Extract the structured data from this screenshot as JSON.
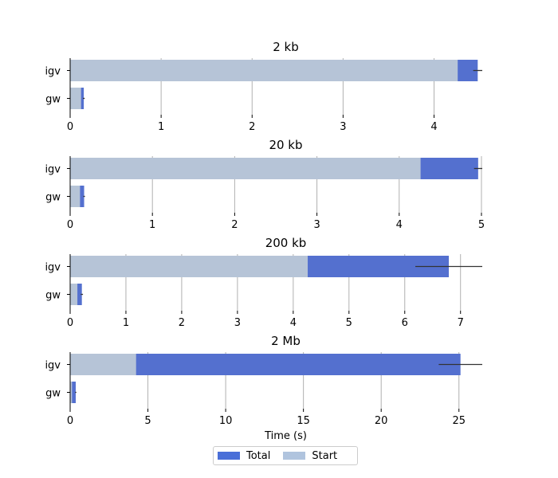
{
  "chart_data": [
    {
      "type": "bar",
      "orientation": "horizontal",
      "title": "2 kb",
      "categories": [
        "igv",
        "gw"
      ],
      "series": [
        {
          "name": "Total",
          "values": [
            4.48,
            0.15
          ],
          "error": [
            0.05,
            0.01
          ]
        },
        {
          "name": "Start",
          "values": [
            4.26,
            0.12
          ]
        }
      ],
      "xlim": [
        0,
        4.53
      ],
      "xticks": [
        0,
        1,
        2,
        3,
        4
      ],
      "xlabel": "",
      "grid": "x"
    },
    {
      "type": "bar",
      "orientation": "horizontal",
      "title": "20 kb",
      "categories": [
        "igv",
        "gw"
      ],
      "series": [
        {
          "name": "Total",
          "values": [
            4.96,
            0.17
          ],
          "error": [
            0.05,
            0.01
          ]
        },
        {
          "name": "Start",
          "values": [
            4.26,
            0.12
          ]
        }
      ],
      "xlim": [
        0,
        5.01
      ],
      "xticks": [
        0,
        1,
        2,
        3,
        4,
        5
      ],
      "xlabel": "",
      "grid": "x"
    },
    {
      "type": "bar",
      "orientation": "horizontal",
      "title": "200 kb",
      "categories": [
        "igv",
        "gw"
      ],
      "series": [
        {
          "name": "Total",
          "values": [
            6.79,
            0.21
          ],
          "error": [
            0.6,
            0.02
          ]
        },
        {
          "name": "Start",
          "values": [
            4.26,
            0.13
          ]
        }
      ],
      "xlim": [
        0,
        7.39
      ],
      "xticks": [
        0,
        1,
        2,
        3,
        4,
        5,
        6,
        7
      ],
      "xlabel": "",
      "grid": "x"
    },
    {
      "type": "bar",
      "orientation": "horizontal",
      "title": "2 Mb",
      "categories": [
        "igv",
        "gw"
      ],
      "series": [
        {
          "name": "Total",
          "values": [
            25.1,
            0.36
          ],
          "error": [
            1.4,
            0.04
          ]
        },
        {
          "name": "Start",
          "values": [
            4.24,
            0.12
          ]
        }
      ],
      "xlim": [
        0,
        26.5
      ],
      "xticks": [
        0,
        5,
        10,
        15,
        20,
        25
      ],
      "xlabel": "Time (s)",
      "grid": "x"
    }
  ],
  "legend": {
    "placement": "bottom-center",
    "items": [
      {
        "label": "Total",
        "color": "#4a6fd8"
      },
      {
        "label": "Start",
        "color": "#b0c4de"
      }
    ]
  },
  "colors": {
    "total": "#5470cf",
    "start": "#b6c4d7",
    "grid": "#b0b0b0",
    "error": "#333333"
  }
}
